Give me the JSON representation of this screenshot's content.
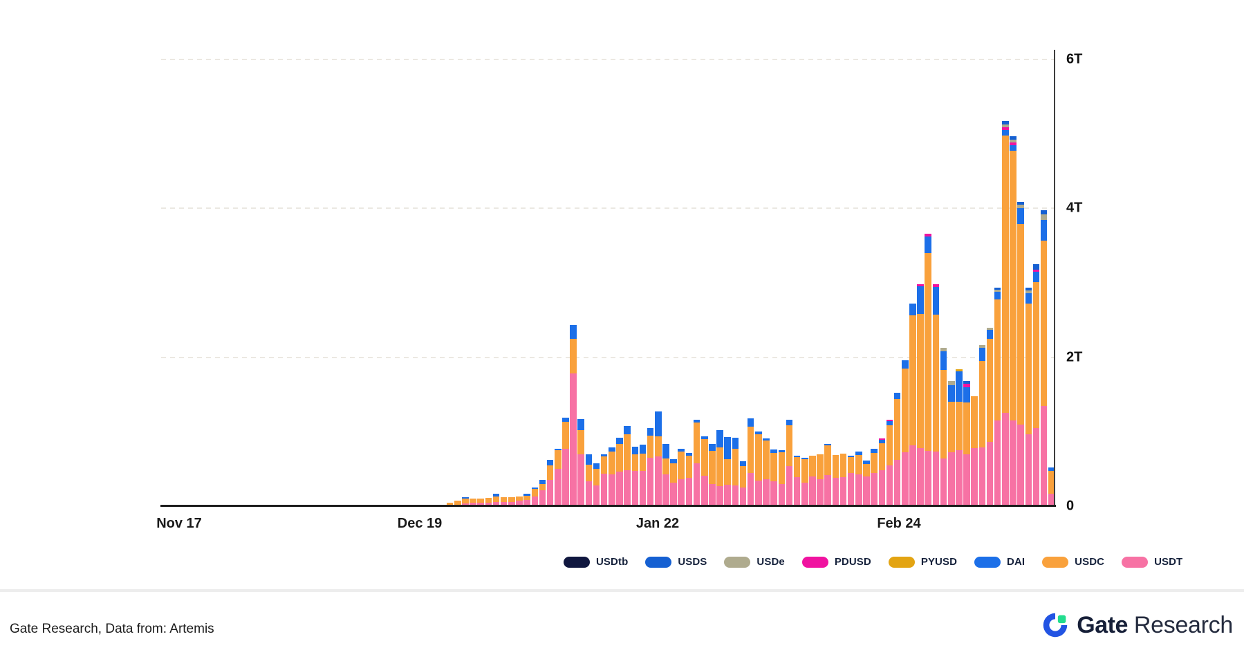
{
  "chart_data": {
    "type": "bar",
    "stacked": true,
    "title": "",
    "xlabel": "",
    "ylabel": "",
    "unit": "T",
    "ylim": [
      0,
      6
    ],
    "grid": "horizontal-dashed",
    "legend_position": "bottom",
    "yticks": [
      "6T",
      "4T",
      "2T",
      "0"
    ],
    "x_axis_labels": [
      "Nov 17",
      "Dec 19",
      "Jan 22",
      "Feb 24"
    ],
    "x_range_note": "daily bars from Nov 15 to Mar 16",
    "series_order_bottom_to_top": [
      "USDT",
      "USDC",
      "DAI",
      "PYUSD",
      "PDUSD",
      "USDe",
      "USDS",
      "USDtb"
    ],
    "colors": {
      "USDT": "#f772a4",
      "USDC": "#f9a13c",
      "DAI": "#1c6fe8",
      "PYUSD": "#e3a412",
      "PDUSD": "#f013a0",
      "USDe": "#afab8e",
      "USDS": "#1560d2",
      "USDtb": "#10173f"
    },
    "bars": [
      [],
      [],
      [],
      [],
      [],
      [],
      [],
      [],
      [],
      [],
      [],
      [],
      [],
      [],
      [],
      [],
      [],
      [],
      [],
      [],
      [],
      [],
      [],
      [],
      [],
      [],
      [],
      [],
      [],
      [],
      [],
      [],
      [],
      [],
      [],
      [],
      [
        0,
        0.02,
        0
      ],
      [
        0.01,
        0.03,
        0
      ],
      [
        0.02,
        0.05,
        0
      ],
      [
        0.04,
        0.06,
        0.02
      ],
      [
        0.05,
        0.05,
        0
      ],
      [
        0.05,
        0.05,
        0
      ],
      [
        0.05,
        0.06,
        0
      ],
      [
        0.06,
        0.07,
        0.04
      ],
      [
        0.06,
        0.06,
        0
      ],
      [
        0.06,
        0.06,
        0
      ],
      [
        0.07,
        0.06,
        0
      ],
      [
        0.08,
        0.06,
        0.03
      ],
      [
        0.13,
        0.1,
        0.02
      ],
      [
        0.21,
        0.09,
        0.05
      ],
      [
        0.35,
        0.2,
        0.07
      ],
      [
        0.5,
        0.25,
        0.02
      ],
      [
        0.77,
        0.36,
        0.06
      ],
      [
        1.78,
        0.47,
        0.18
      ],
      [
        0.7,
        0.32,
        0.15
      ],
      [
        0.33,
        0.23,
        0.14
      ],
      [
        0.28,
        0.22,
        0.08
      ],
      [
        0.44,
        0.23,
        0.03
      ],
      [
        0.43,
        0.3,
        0.06
      ],
      [
        0.46,
        0.38,
        0.08
      ],
      [
        0.48,
        0.49,
        0.11
      ],
      [
        0.47,
        0.23,
        0.1
      ],
      [
        0.47,
        0.24,
        0.12
      ],
      [
        0.65,
        0.3,
        0.1
      ],
      [
        0.67,
        0.27,
        0.33
      ],
      [
        0.43,
        0.21,
        0.2
      ],
      [
        0.32,
        0.26,
        0.05
      ],
      [
        0.36,
        0.37,
        0.04
      ],
      [
        0.38,
        0.3,
        0.04
      ],
      [
        0.58,
        0.54,
        0.04
      ],
      [
        0.41,
        0.49,
        0.04
      ],
      [
        0.3,
        0.44,
        0.1
      ],
      [
        0.27,
        0.52,
        0.23
      ],
      [
        0.29,
        0.34,
        0.3
      ],
      [
        0.28,
        0.49,
        0.15
      ],
      [
        0.25,
        0.29,
        0.06
      ],
      [
        0.45,
        0.62,
        0.11
      ],
      [
        0.34,
        0.63,
        0.03
      ],
      [
        0.36,
        0.52,
        0.03
      ],
      [
        0.33,
        0.39,
        0.04
      ],
      [
        0.3,
        0.42,
        0.03
      ],
      [
        0.54,
        0.55,
        0.07
      ],
      [
        0.39,
        0.27,
        0.02
      ],
      [
        0.32,
        0.31,
        0.02
      ],
      [
        0.4,
        0.28,
        0
      ],
      [
        0.36,
        0.34,
        0
      ],
      [
        0.42,
        0.4,
        0.01
      ],
      [
        0.38,
        0.31,
        0
      ],
      [
        0.39,
        0.32,
        0
      ],
      [
        0.45,
        0.21,
        0.02
      ],
      [
        0.43,
        0.26,
        0.04
      ],
      [
        0.4,
        0.17,
        0.04
      ],
      [
        0.45,
        0.27,
        0.05
      ],
      [
        0.48,
        0.37,
        0.04,
        0,
        0.01
      ],
      [
        0.55,
        0.54,
        0.05,
        0,
        0.02
      ],
      [
        0.62,
        0.82,
        0.08
      ],
      [
        0.72,
        1.13,
        0.11
      ],
      [
        0.82,
        1.74,
        0.16
      ],
      [
        0.78,
        1.8,
        0.37,
        0,
        0.03
      ],
      [
        0.74,
        2.66,
        0.22,
        0,
        0.04
      ],
      [
        0.73,
        1.84,
        0.37,
        0,
        0.04
      ],
      [
        0.64,
        1.19,
        0.25,
        0,
        0,
        0.05
      ],
      [
        0.72,
        0.68,
        0.23,
        0,
        0,
        0.05
      ],
      [
        0.75,
        0.65,
        0.41,
        0.03,
        0,
        0
      ],
      [
        0.7,
        0.69,
        0.21,
        0,
        0.04,
        0,
        0.04
      ],
      [
        0.78,
        0.7,
        0
      ],
      [
        0.79,
        1.16,
        0.18,
        0,
        0,
        0.03
      ],
      [
        0.86,
        1.39,
        0.12,
        0,
        0,
        0.03
      ],
      [
        1.15,
        1.63,
        0.1,
        0,
        0,
        0.03,
        0.03
      ],
      [
        1.25,
        3.73,
        0.07,
        0,
        0.04,
        0.04,
        0.04
      ],
      [
        1.15,
        3.62,
        0.08,
        0,
        0.04,
        0.03,
        0.05
      ],
      [
        1.1,
        2.69,
        0.21,
        0,
        0,
        0.05,
        0.04
      ],
      [
        0.97,
        1.75,
        0.14,
        0,
        0,
        0.04,
        0.04
      ],
      [
        1.05,
        1.96,
        0.14,
        0,
        0.03,
        0,
        0.07
      ],
      [
        1.35,
        2.22,
        0.28,
        0,
        0,
        0.07,
        0.06
      ],
      [
        0.17,
        0.3,
        0.05
      ]
    ]
  },
  "legend": {
    "items": [
      {
        "label": "USDtb",
        "color": "#10173f"
      },
      {
        "label": "USDS",
        "color": "#1560d2"
      },
      {
        "label": "USDe",
        "color": "#afab8e"
      },
      {
        "label": "PDUSD",
        "color": "#f013a0"
      },
      {
        "label": "PYUSD",
        "color": "#e3a412"
      },
      {
        "label": "DAI",
        "color": "#1c6fe8"
      },
      {
        "label": "USDC",
        "color": "#f9a13c"
      },
      {
        "label": "USDT",
        "color": "#f772a4"
      }
    ]
  },
  "footer": {
    "attribution": "Gate Research, Data from: Artemis",
    "brand_bold": "Gate",
    "brand_regular": "Research",
    "brand_mark_blue": "#2254e3",
    "brand_mark_green": "#22dd8e"
  }
}
